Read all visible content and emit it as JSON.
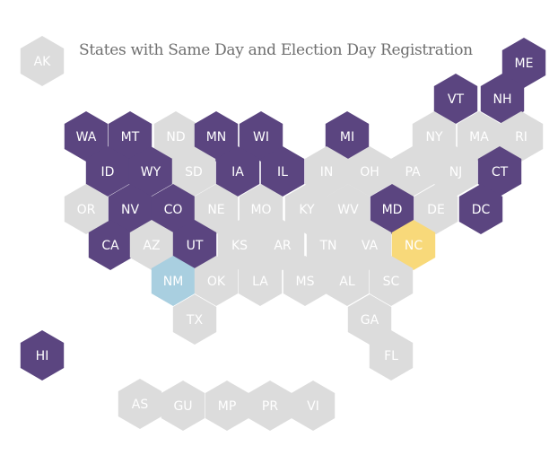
{
  "title": "States with Same Day and Election Day Registration",
  "colors": {
    "purple": "#5b4580",
    "gray": "#dcdcdc",
    "blue": "#a9cfe0",
    "yellow": "#f8d97a",
    "label_light": "#ffffff",
    "label_dark": "#ffffff"
  },
  "tiles": [
    {
      "abbr": "AK",
      "status": "gray"
    },
    {
      "abbr": "ME",
      "status": "purple"
    },
    {
      "abbr": "VT",
      "status": "purple"
    },
    {
      "abbr": "NH",
      "status": "purple"
    },
    {
      "abbr": "WA",
      "status": "purple"
    },
    {
      "abbr": "MT",
      "status": "purple"
    },
    {
      "abbr": "ND",
      "status": "gray"
    },
    {
      "abbr": "MN",
      "status": "purple"
    },
    {
      "abbr": "WI",
      "status": "purple"
    },
    {
      "abbr": "MI",
      "status": "purple"
    },
    {
      "abbr": "NY",
      "status": "gray"
    },
    {
      "abbr": "MA",
      "status": "gray"
    },
    {
      "abbr": "RI",
      "status": "gray"
    },
    {
      "abbr": "ID",
      "status": "purple"
    },
    {
      "abbr": "WY",
      "status": "purple"
    },
    {
      "abbr": "SD",
      "status": "gray"
    },
    {
      "abbr": "IA",
      "status": "purple"
    },
    {
      "abbr": "IL",
      "status": "purple"
    },
    {
      "abbr": "IN",
      "status": "gray"
    },
    {
      "abbr": "OH",
      "status": "gray"
    },
    {
      "abbr": "PA",
      "status": "gray"
    },
    {
      "abbr": "NJ",
      "status": "gray"
    },
    {
      "abbr": "CT",
      "status": "purple"
    },
    {
      "abbr": "OR",
      "status": "gray"
    },
    {
      "abbr": "NV",
      "status": "purple"
    },
    {
      "abbr": "CO",
      "status": "purple"
    },
    {
      "abbr": "NE",
      "status": "gray"
    },
    {
      "abbr": "MO",
      "status": "gray"
    },
    {
      "abbr": "KY",
      "status": "gray"
    },
    {
      "abbr": "WV",
      "status": "gray"
    },
    {
      "abbr": "MD",
      "status": "purple"
    },
    {
      "abbr": "DE",
      "status": "gray"
    },
    {
      "abbr": "DC",
      "status": "purple"
    },
    {
      "abbr": "CA",
      "status": "purple"
    },
    {
      "abbr": "AZ",
      "status": "gray"
    },
    {
      "abbr": "UT",
      "status": "purple"
    },
    {
      "abbr": "KS",
      "status": "gray"
    },
    {
      "abbr": "AR",
      "status": "gray"
    },
    {
      "abbr": "TN",
      "status": "gray"
    },
    {
      "abbr": "VA",
      "status": "gray"
    },
    {
      "abbr": "NC",
      "status": "yellow"
    },
    {
      "abbr": "NM",
      "status": "blue"
    },
    {
      "abbr": "OK",
      "status": "gray"
    },
    {
      "abbr": "LA",
      "status": "gray"
    },
    {
      "abbr": "MS",
      "status": "gray"
    },
    {
      "abbr": "AL",
      "status": "gray"
    },
    {
      "abbr": "SC",
      "status": "gray"
    },
    {
      "abbr": "TX",
      "status": "gray"
    },
    {
      "abbr": "GA",
      "status": "gray"
    },
    {
      "abbr": "HI",
      "status": "purple"
    },
    {
      "abbr": "FL",
      "status": "gray"
    },
    {
      "abbr": "AS",
      "status": "gray"
    },
    {
      "abbr": "GU",
      "status": "gray"
    },
    {
      "abbr": "MP",
      "status": "gray"
    },
    {
      "abbr": "PR",
      "status": "gray"
    },
    {
      "abbr": "VI",
      "status": "gray"
    }
  ]
}
